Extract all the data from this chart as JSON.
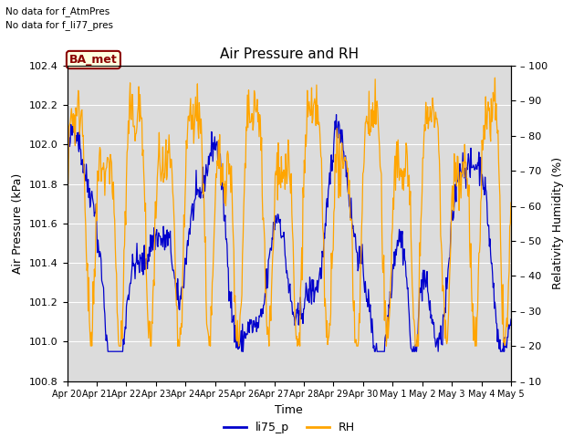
{
  "title": "Air Pressure and RH",
  "xlabel": "Time",
  "ylabel_left": "Air Pressure (kPa)",
  "ylabel_right": "Relativity Humidity (%)",
  "text_no_data_1": "No data for f_AtmPres",
  "text_no_data_2": "No data for f_li77_pres",
  "legend_label_1": "li75_p",
  "legend_label_2": "RH",
  "ba_met_label": "BA_met",
  "color_pressure": "#0000CC",
  "color_rh": "#FFA500",
  "ylim_left": [
    100.8,
    102.4
  ],
  "ylim_right": [
    10,
    100
  ],
  "background_color": "#DCDCDC",
  "fig_background": "#FFFFFF",
  "grid_color": "#FFFFFF",
  "tick_dates": [
    "Apr 20",
    "Apr 21",
    "Apr 22",
    "Apr 23",
    "Apr 24",
    "Apr 25",
    "Apr 26",
    "Apr 27",
    "Apr 28",
    "Apr 29",
    "Apr 30",
    "May 1",
    "May 2",
    "May 3",
    "May 4",
    "May 5"
  ],
  "yticks_left": [
    100.8,
    101.0,
    101.2,
    101.4,
    101.6,
    101.8,
    102.0,
    102.2,
    102.4
  ],
  "yticks_right": [
    10,
    20,
    30,
    40,
    50,
    60,
    70,
    80,
    90,
    100
  ],
  "seed": 42
}
